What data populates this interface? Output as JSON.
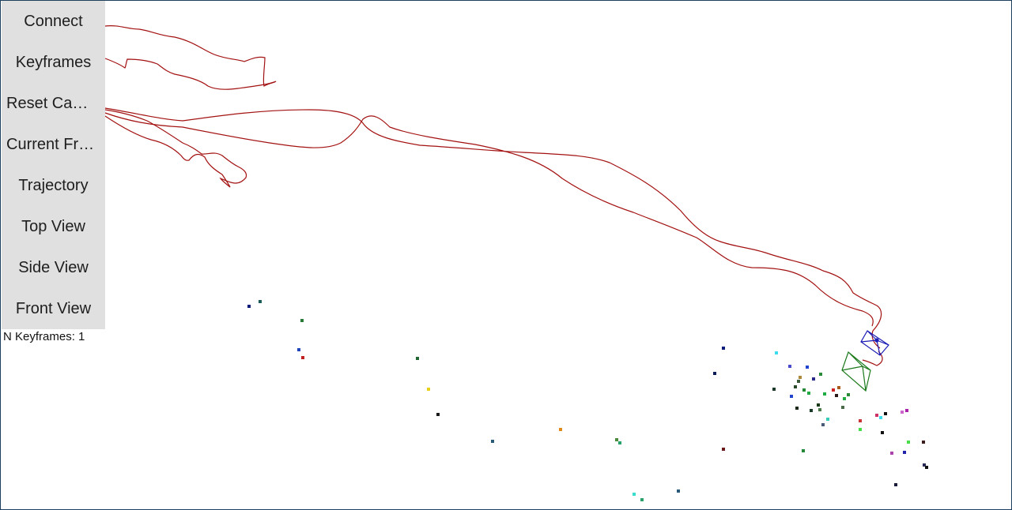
{
  "panel": {
    "buttons": [
      {
        "label": "Connect"
      },
      {
        "label": "Keyframes"
      },
      {
        "label": "Reset Camera"
      },
      {
        "label": "Current Frame"
      },
      {
        "label": "Trajectory"
      },
      {
        "label": "Top View"
      },
      {
        "label": "Side View"
      },
      {
        "label": "Front View"
      }
    ]
  },
  "status": {
    "text": "N Keyframes: 1"
  },
  "scene": {
    "trajectory_color": "#a31111",
    "current_camera_color": "#1b1bb5",
    "keyframe_camera_color": "#1d7a1d",
    "background_color": "#ffffff"
  }
}
